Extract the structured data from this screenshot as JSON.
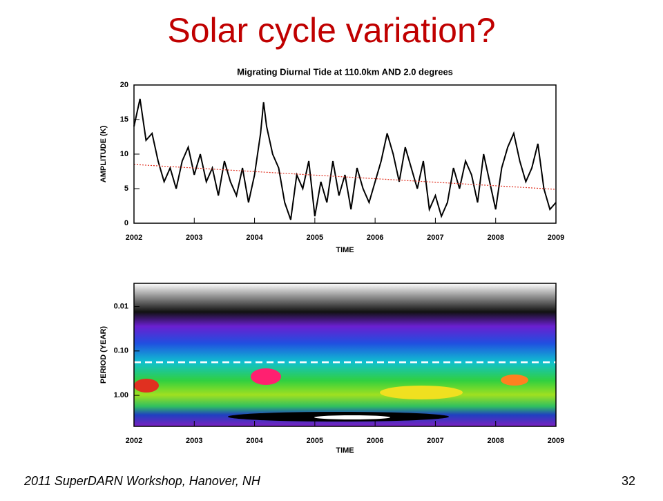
{
  "slide": {
    "title": "Solar cycle variation?",
    "footer": "2011 SuperDARN Workshop, Hanover, NH",
    "page_number": "32"
  },
  "chart_data": [
    {
      "type": "line",
      "title": "Migrating Diurnal Tide at 110.0km AND  2.0 degrees",
      "x_label": "TIME",
      "y_label": "AMPLITUDE (K)",
      "series": [
        {
          "color": "#000000",
          "x": [
            2002.0,
            2002.05,
            2002.1,
            2002.15,
            2002.2,
            2002.3,
            2002.4,
            2002.5,
            2002.6,
            2002.7,
            2002.8,
            2002.9,
            2003.0,
            2003.1,
            2003.2,
            2003.3,
            2003.4,
            2003.5,
            2003.6,
            2003.7,
            2003.8,
            2003.9,
            2004.0,
            2004.1,
            2004.15,
            2004.2,
            2004.3,
            2004.4,
            2004.5,
            2004.6,
            2004.7,
            2004.8,
            2004.9,
            2005.0,
            2005.1,
            2005.2,
            2005.3,
            2005.4,
            2005.5,
            2005.6,
            2005.7,
            2005.8,
            2005.9,
            2006.0,
            2006.1,
            2006.2,
            2006.3,
            2006.4,
            2006.5,
            2006.6,
            2006.7,
            2006.8,
            2006.9,
            2007.0,
            2007.1,
            2007.2,
            2007.3,
            2007.4,
            2007.5,
            2007.6,
            2007.7,
            2007.8,
            2007.9,
            2008.0,
            2008.1,
            2008.2,
            2008.3,
            2008.4,
            2008.5,
            2008.6,
            2008.7,
            2008.8,
            2008.9,
            2009.0
          ],
          "values": [
            14,
            16,
            18,
            15,
            12,
            13,
            9,
            6,
            8,
            5,
            9,
            11,
            7,
            10,
            6,
            8,
            4,
            9,
            6,
            4,
            8,
            3,
            7,
            13,
            17.5,
            14,
            10,
            8,
            3,
            0.5,
            7,
            5,
            9,
            1,
            6,
            3,
            9,
            4,
            7,
            2,
            8,
            5,
            3,
            6,
            9,
            13,
            10,
            6,
            11,
            8,
            5,
            9,
            2,
            4,
            1,
            3,
            8,
            5,
            9,
            7,
            3,
            10,
            6,
            2,
            8,
            11,
            13,
            9,
            6,
            8,
            11.5,
            5,
            2,
            3
          ]
        },
        {
          "color": "#e03020",
          "dotted": true,
          "x": [
            2002,
            2009
          ],
          "values": [
            8.5,
            4.9
          ]
        }
      ],
      "xlim": [
        2002,
        2009
      ],
      "xticks": [
        2002,
        2003,
        2004,
        2005,
        2006,
        2007,
        2008,
        2009
      ],
      "ylim": [
        0,
        20
      ],
      "yticks": [
        0,
        5,
        10,
        15,
        20
      ]
    },
    {
      "type": "contour",
      "x_label": "TIME",
      "y_label": "PERIOD (YEAR)",
      "xlim": [
        2002,
        2009
      ],
      "xticks": [
        2002,
        2003,
        2004,
        2005,
        2006,
        2007,
        2008,
        2009
      ],
      "ylim": [
        0.003,
        5
      ],
      "log_y": true,
      "y_inverted": true,
      "yticks": [
        {
          "value": 0.01,
          "label": "0.01"
        },
        {
          "value": 0.1,
          "label": "0.10"
        },
        {
          "value": 1,
          "label": "1.00"
        }
      ],
      "reference_line": 0.18,
      "reference_color": "#ffffff"
    }
  ]
}
